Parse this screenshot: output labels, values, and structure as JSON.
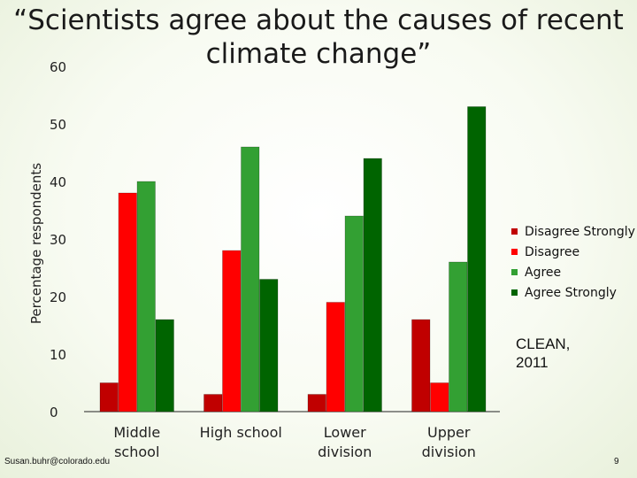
{
  "slide": {
    "footer_left": "Susan.buhr@colorado.edu",
    "page_number": "9",
    "note": "CLEAN,\n2011"
  },
  "chart_data": {
    "type": "bar",
    "title": "“Scientists agree about the causes of recent climate change”",
    "ylabel": "Percentage respondents",
    "xlabel": "",
    "ylim": [
      0,
      60
    ],
    "yticks": [
      0,
      10,
      20,
      30,
      40,
      50,
      60
    ],
    "categories": [
      "Middle\nschool",
      "High school",
      "Lower\ndivision",
      "Upper\ndivision"
    ],
    "series": [
      {
        "name": "Disagree Strongly",
        "color": "#c00000",
        "values": [
          5,
          3,
          3,
          16
        ]
      },
      {
        "name": "Disagree",
        "color": "#ff0000",
        "values": [
          38,
          28,
          19,
          5
        ]
      },
      {
        "name": "Agree",
        "color": "#33a033",
        "values": [
          40,
          46,
          34,
          26
        ]
      },
      {
        "name": "Agree Strongly",
        "color": "#006400",
        "values": [
          16,
          23,
          44,
          53
        ]
      }
    ],
    "legend_position": "right",
    "grid": false
  }
}
